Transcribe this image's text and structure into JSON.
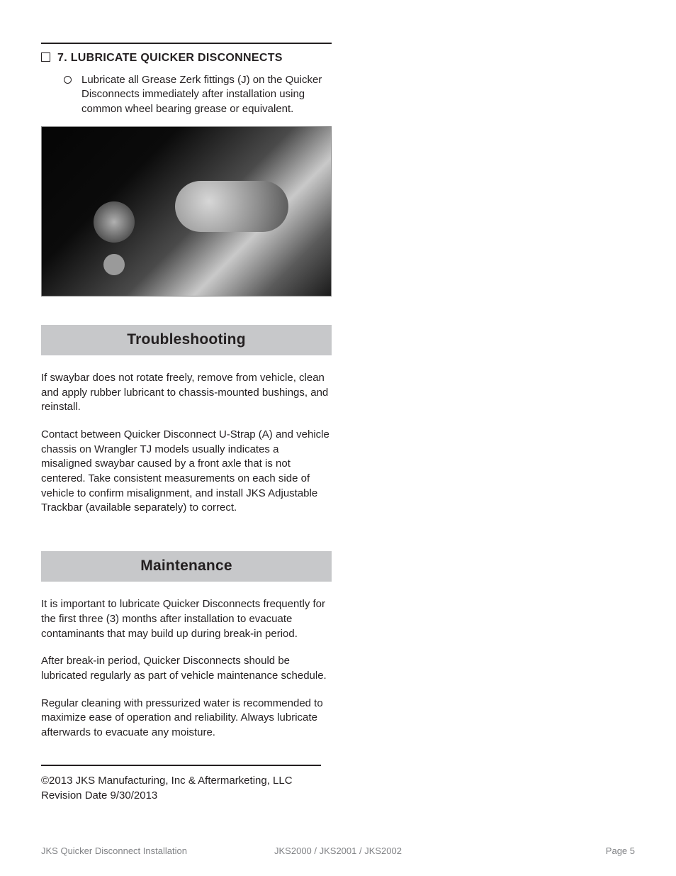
{
  "step": {
    "title": "7. LUBRICATE QUICKER DISCONNECTS",
    "bullet": "Lubricate all Grease Zerk fittings (J) on the Quicker Disconnects immediately after installation using common wheel bearing grease or equivalent."
  },
  "troubleshooting": {
    "heading": "Troubleshooting",
    "p1": "If swaybar does not rotate freely, remove from vehicle, clean and apply rubber lubricant to chassis-mounted bushings, and reinstall.",
    "p2": "Contact between Quicker Disconnect U-Strap (A) and vehicle chassis on Wrangler TJ models usually indicates a misaligned swaybar caused by a front axle that is not centered. Take consistent measurements on each side of vehicle to confirm misalignment, and install JKS Adjustable Trackbar (available separately) to correct."
  },
  "maintenance": {
    "heading": "Maintenance",
    "p1": "It is important to lubricate Quicker Disconnects frequently for the first three (3) months after installation to evacuate contaminants that may build up during break-in period.",
    "p2": "After break-in period, Quicker Disconnects should be lubricated regularly as part of vehicle maintenance schedule.",
    "p3": "Regular cleaning with pressurized water is recommended to maximize ease of operation and reliability. Always lubricate afterwards to evacuate any moisture."
  },
  "legal": {
    "copyright": "©2013 JKS Manufacturing, Inc & Aftermarketing, LLC",
    "revision": "Revision Date 9/30/2013"
  },
  "footer": {
    "left": "JKS Quicker Disconnect Installation",
    "mid": "JKS2000 / JKS2001 / JKS2002",
    "right": "Page 5"
  },
  "colors": {
    "section_bar_bg": "#c7c8ca",
    "text": "#231f20",
    "footer_text": "#808285"
  },
  "typography": {
    "body_fontsize": 15,
    "heading_fontsize": 21,
    "step_title_fontsize": 16,
    "footer_fontsize": 13
  }
}
